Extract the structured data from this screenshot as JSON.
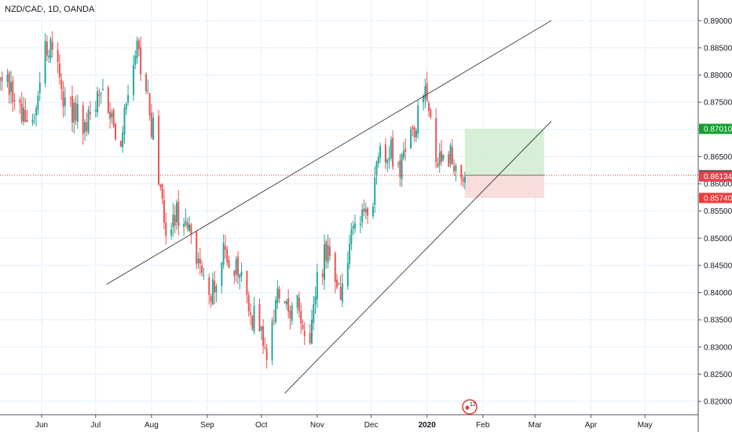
{
  "header": {
    "symbol_title": "NZD/CAD, 1D, OANDA"
  },
  "colors": {
    "up": "#26a69a",
    "down": "#ef5350",
    "grid": "#e3effd",
    "trendline": "#4a4a4a",
    "profit_zone": "#cfeccf",
    "loss_zone": "#f8d7d7",
    "take_profit_tag": "#15a031",
    "entry_tag": "#4a4a4a",
    "stop_tag": "#ef3b3b",
    "last_price_tag": "#e0434d",
    "brand_icon": "#e53935"
  },
  "icons": {
    "brand_badge": "tradingview-calendar-icon",
    "brand_badge_text": "12"
  },
  "chart_data": {
    "type": "candlestick",
    "title": "NZD/CAD, 1D, OANDA",
    "xlabel": "",
    "ylabel": "",
    "ylim": [
      0.8175,
      0.9
    ],
    "grid": true,
    "y_ticks": [
      "0.82000",
      "0.82500",
      "0.83000",
      "0.83500",
      "0.84000",
      "0.84500",
      "0.85000",
      "0.85500",
      "0.86000",
      "0.86500",
      "0.87000",
      "0.87500",
      "0.88000",
      "0.88500",
      "0.89000",
      "0.89500",
      "0.90000"
    ],
    "x_ticks": [
      "Jun",
      "Jul",
      "Aug",
      "Sep",
      "Oct",
      "Nov",
      "Dec",
      "2020",
      "Feb",
      "Mar",
      "Apr",
      "May"
    ],
    "price_tags": [
      {
        "label": "0.87010",
        "value": 0.8701,
        "role": "take-profit"
      },
      {
        "label": "0.86157",
        "value": 0.86157,
        "role": "entry"
      },
      {
        "label": "0.86134",
        "value": 0.86134,
        "role": "last-price"
      },
      {
        "label": "0.85740",
        "value": 0.8574,
        "role": "stop-loss"
      }
    ],
    "trendlines": [
      {
        "name": "upper-channel",
        "x1": "2019-07-07",
        "y1": 0.8415,
        "x2": "2020-03-10",
        "y2": 0.89
      },
      {
        "name": "lower-channel",
        "x1": "2019-10-14",
        "y1": 0.8215,
        "x2": "2020-03-10",
        "y2": 0.8715
      }
    ],
    "position": {
      "start": "2020-01-22",
      "end": "2020-03-06",
      "entry": 0.86157,
      "take_profit": 0.8701,
      "stop_loss": 0.8574
    },
    "anchors": [
      {
        "date": "2019-05-08",
        "close": 0.881
      },
      {
        "date": "2019-05-20",
        "close": 0.873
      },
      {
        "date": "2019-05-27",
        "close": 0.8705
      },
      {
        "date": "2019-06-03",
        "close": 0.8845
      },
      {
        "date": "2019-06-07",
        "close": 0.8855
      },
      {
        "date": "2019-06-14",
        "close": 0.8735
      },
      {
        "date": "2019-06-26",
        "close": 0.8715
      },
      {
        "date": "2019-07-04",
        "close": 0.8775
      },
      {
        "date": "2019-07-14",
        "close": 0.8675
      },
      {
        "date": "2019-07-23",
        "close": 0.8835
      },
      {
        "date": "2019-07-25",
        "close": 0.884
      },
      {
        "date": "2019-08-02",
        "close": 0.8695
      },
      {
        "date": "2019-08-09",
        "close": 0.8505
      },
      {
        "date": "2019-08-14",
        "close": 0.8545
      },
      {
        "date": "2019-08-23",
        "close": 0.8495
      },
      {
        "date": "2019-09-02",
        "close": 0.8395
      },
      {
        "date": "2019-09-10",
        "close": 0.8465
      },
      {
        "date": "2019-09-18",
        "close": 0.8455
      },
      {
        "date": "2019-09-25",
        "close": 0.8365
      },
      {
        "date": "2019-10-01",
        "close": 0.8335
      },
      {
        "date": "2019-10-04",
        "close": 0.8265
      },
      {
        "date": "2019-10-10",
        "close": 0.8415
      },
      {
        "date": "2019-10-17",
        "close": 0.8345
      },
      {
        "date": "2019-10-22",
        "close": 0.8375
      },
      {
        "date": "2019-10-28",
        "close": 0.8295
      },
      {
        "date": "2019-11-01",
        "close": 0.8425
      },
      {
        "date": "2019-11-06",
        "close": 0.8475
      },
      {
        "date": "2019-11-14",
        "close": 0.8405
      },
      {
        "date": "2019-11-21",
        "close": 0.8505
      },
      {
        "date": "2019-11-27",
        "close": 0.8545
      },
      {
        "date": "2019-12-02",
        "close": 0.8555
      },
      {
        "date": "2019-12-05",
        "close": 0.8655
      },
      {
        "date": "2019-12-09",
        "close": 0.8665
      },
      {
        "date": "2019-12-17",
        "close": 0.8635
      },
      {
        "date": "2019-12-24",
        "close": 0.8695
      },
      {
        "date": "2019-12-31",
        "close": 0.8795
      },
      {
        "date": "2020-01-06",
        "close": 0.8655
      },
      {
        "date": "2020-01-14",
        "close": 0.8645
      },
      {
        "date": "2020-01-21",
        "close": 0.8625
      },
      {
        "date": "2020-01-22",
        "close": 0.86134
      }
    ]
  }
}
